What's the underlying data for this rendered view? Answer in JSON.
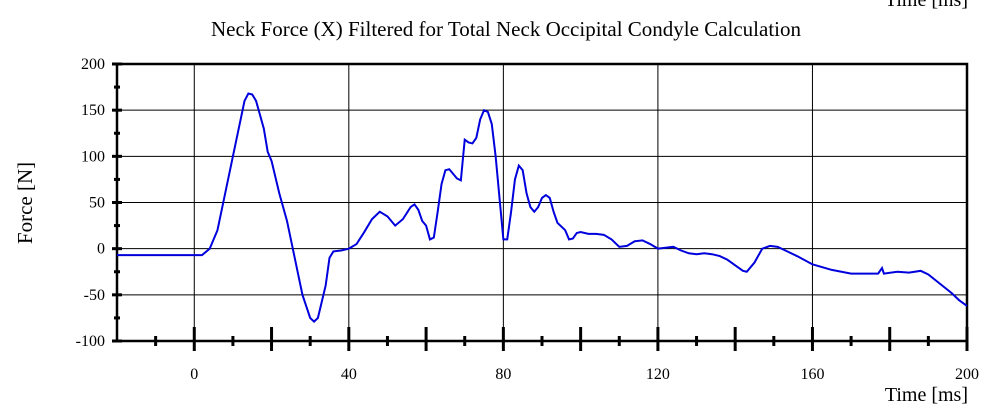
{
  "chart_data": {
    "type": "line",
    "title": "Neck Force (X) Filtered for Total Neck Occipital Condyle Calculation",
    "x_label": "Time [ms]",
    "y_label": "Force [N]",
    "xlim": [
      -20,
      200
    ],
    "ylim": [
      -100,
      200
    ],
    "xticks": [
      0,
      40,
      80,
      120,
      160,
      200
    ],
    "xminorticks": [
      -10,
      10,
      20,
      30,
      50,
      60,
      70,
      90,
      100,
      110,
      130,
      140,
      150,
      170,
      180,
      190
    ],
    "yticks": [
      -100,
      -50,
      0,
      50,
      100,
      150,
      200
    ],
    "yminorticks": [
      -75,
      -25,
      25,
      75,
      125,
      175
    ],
    "grid": true,
    "series": [
      {
        "name": "Neck Force (X)",
        "color": "#0000dd",
        "x": [
          -20,
          2,
          4,
          6,
          8,
          10,
          12,
          13,
          14,
          15,
          16,
          18,
          19,
          20,
          22,
          24,
          26,
          28,
          30,
          31,
          32,
          34,
          35,
          36,
          38,
          40,
          42,
          44,
          46,
          48,
          50,
          52,
          54,
          56,
          57,
          58,
          59,
          60,
          61,
          62,
          63,
          64,
          65,
          66,
          68,
          69,
          70,
          71,
          72,
          73,
          74,
          75,
          76,
          77,
          78,
          79,
          80,
          81,
          82,
          83,
          84,
          85,
          86,
          87,
          88,
          89,
          90,
          91,
          92,
          93,
          94,
          96,
          97,
          98,
          99,
          100,
          102,
          104,
          106,
          108,
          110,
          112,
          114,
          116,
          118,
          120,
          122,
          124,
          126,
          128,
          130,
          132,
          134,
          136,
          138,
          140,
          142,
          143,
          145,
          147,
          149,
          151,
          153,
          156,
          160,
          165,
          170,
          177,
          178,
          178.5,
          182,
          185,
          188,
          190,
          193,
          196,
          198,
          200
        ],
        "values": [
          -7,
          -7,
          0,
          20,
          60,
          100,
          140,
          160,
          168,
          167,
          160,
          130,
          105,
          95,
          60,
          30,
          -10,
          -50,
          -75,
          -79,
          -75,
          -40,
          -10,
          -3,
          -2,
          0,
          5,
          18,
          32,
          40,
          35,
          25,
          32,
          45,
          48,
          42,
          30,
          25,
          10,
          12,
          40,
          70,
          85,
          86,
          76,
          74,
          118,
          115,
          114,
          120,
          140,
          150,
          148,
          135,
          100,
          55,
          10,
          10,
          40,
          75,
          90,
          85,
          60,
          45,
          40,
          45,
          55,
          58,
          55,
          40,
          28,
          20,
          10,
          11,
          17,
          18,
          16,
          16,
          15,
          10,
          2,
          3,
          8,
          9,
          5,
          0,
          1,
          2,
          -2,
          -5,
          -6,
          -5,
          -6,
          -8,
          -12,
          -18,
          -24,
          -25,
          -15,
          0,
          3,
          2,
          -2,
          -8,
          -17,
          -23,
          -27,
          -27,
          -21,
          -27,
          -25,
          -26,
          -24,
          -28,
          -38,
          -48,
          -56,
          -62
        ]
      }
    ]
  }
}
